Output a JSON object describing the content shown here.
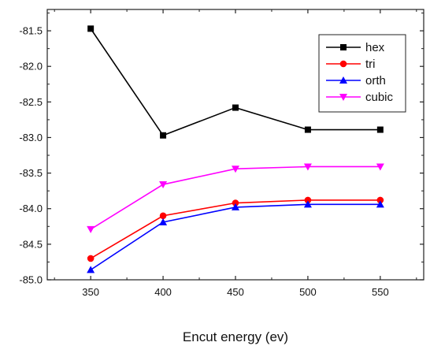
{
  "chart_data": {
    "type": "line",
    "title": "",
    "xlabel": "Encut energy (ev)",
    "ylabel": "",
    "x": [
      350,
      400,
      450,
      500,
      550
    ],
    "x_ticks": [
      "350",
      "400",
      "450",
      "500",
      "550"
    ],
    "y_ticks": [
      "-81.5",
      "-82.0",
      "-82.5",
      "-83.0",
      "-83.5",
      "-84.0",
      "-84.5",
      "-85.0"
    ],
    "xlim": [
      320,
      580
    ],
    "ylim": [
      -85.0,
      -81.2
    ],
    "grid": false,
    "legend_position": "top-right",
    "series": [
      {
        "name": "hex",
        "color": "#000000",
        "marker": "square",
        "values": [
          -81.47,
          -82.97,
          -82.58,
          -82.89,
          -82.89
        ]
      },
      {
        "name": "tri",
        "color": "#ff0000",
        "marker": "circle",
        "values": [
          -84.7,
          -84.1,
          -83.92,
          -83.88,
          -83.88
        ]
      },
      {
        "name": "orth",
        "color": "#0000ff",
        "marker": "triangle-up",
        "values": [
          -84.86,
          -84.19,
          -83.98,
          -83.94,
          -83.94
        ]
      },
      {
        "name": "cubic",
        "color": "#ff00ff",
        "marker": "triangle-down",
        "values": [
          -84.29,
          -83.66,
          -83.44,
          -83.41,
          -83.41
        ]
      }
    ]
  }
}
